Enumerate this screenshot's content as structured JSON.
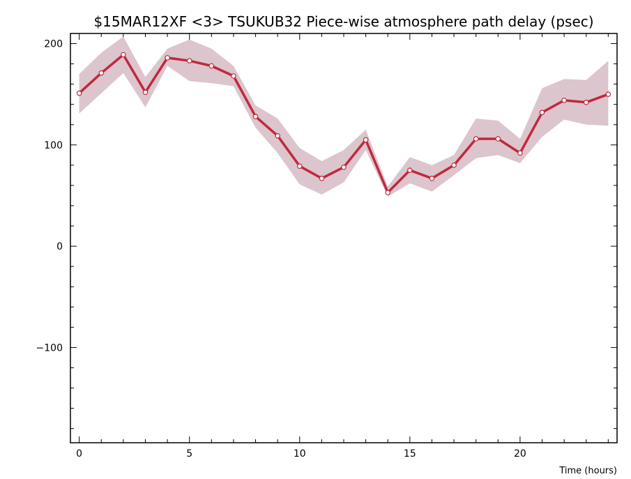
{
  "chart_data": {
    "type": "line",
    "title": "$15MAR12XF <3>  TSUKUB32  Piece-wise atmosphere path delay (psec)",
    "xlabel": "Time (hours)",
    "ylabel": "",
    "xlim": [
      -0.4,
      24.4
    ],
    "ylim": [
      -194,
      210
    ],
    "x_ticks": [
      0,
      5,
      10,
      15,
      20
    ],
    "y_ticks": [
      -100,
      0,
      100,
      200
    ],
    "grid": false,
    "colors": {
      "line": "#c0283e",
      "band": "#dcc5cc",
      "marker_fill": "#ffffff"
    },
    "series": [
      {
        "x": [
          0,
          1,
          2,
          3,
          4,
          5,
          6,
          7,
          8,
          9,
          10,
          11,
          12,
          13,
          14,
          15,
          16,
          17,
          18,
          19,
          20,
          21,
          22,
          23,
          24
        ],
        "values": [
          151,
          171,
          189,
          152,
          186,
          183,
          178,
          168,
          128,
          109,
          79,
          67,
          78,
          105,
          53,
          75,
          67,
          80,
          106,
          106,
          92,
          132,
          144,
          142,
          150
        ],
        "band_upper": [
          170,
          191,
          207,
          167,
          195,
          204,
          195,
          178,
          139,
          126,
          97,
          84,
          95,
          115,
          59,
          88,
          80,
          90,
          126,
          124,
          106,
          156,
          165,
          164,
          183
        ],
        "band_lower": [
          131,
          151,
          171,
          137,
          178,
          163,
          161,
          158,
          117,
          92,
          61,
          51,
          63,
          95,
          49,
          62,
          54,
          70,
          87,
          90,
          82,
          108,
          125,
          120,
          119
        ]
      }
    ]
  }
}
